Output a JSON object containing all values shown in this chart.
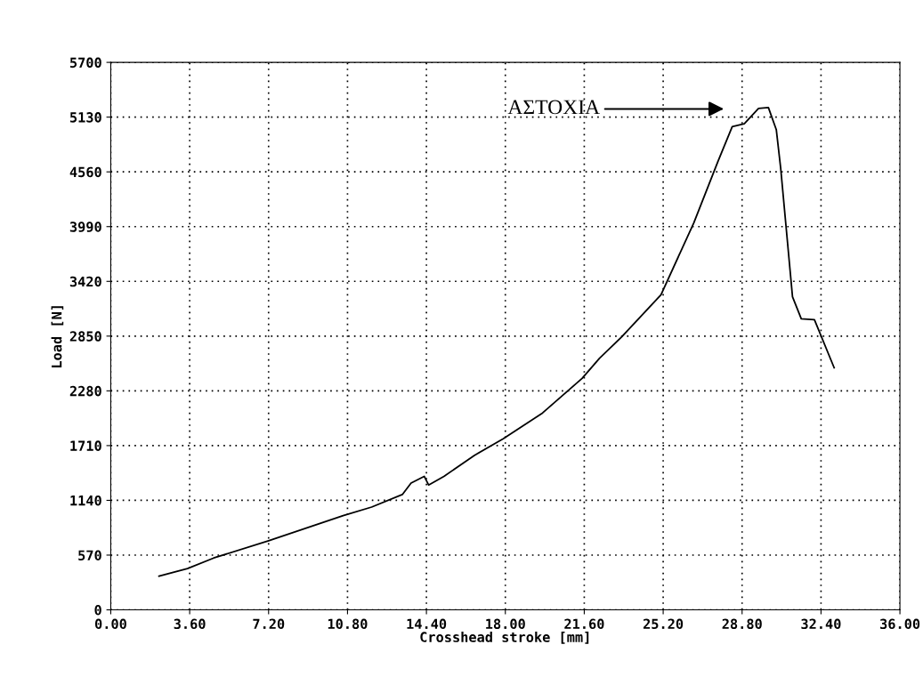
{
  "chart_data": {
    "type": "line",
    "xlabel": "Crosshead stroke [mm]",
    "ylabel": "Load [N]",
    "xlim": [
      0,
      36
    ],
    "ylim": [
      0,
      5700
    ],
    "xticks": [
      {
        "value": 0,
        "label": "0.00"
      },
      {
        "value": 3.6,
        "label": "3.60"
      },
      {
        "value": 7.2,
        "label": "7.20"
      },
      {
        "value": 10.8,
        "label": "10.80"
      },
      {
        "value": 14.4,
        "label": "14.40"
      },
      {
        "value": 18,
        "label": "18.00"
      },
      {
        "value": 21.6,
        "label": "21.60"
      },
      {
        "value": 25.2,
        "label": "25.20"
      },
      {
        "value": 28.8,
        "label": "28.80"
      },
      {
        "value": 32.4,
        "label": "32.40"
      },
      {
        "value": 36,
        "label": "36.00"
      }
    ],
    "yticks": [
      0,
      570,
      1140,
      1710,
      2280,
      2850,
      3420,
      3990,
      4560,
      5130,
      5700
    ],
    "grid": true,
    "annotations": [
      "ΑΣΤΟΧΙΑ"
    ],
    "series": [
      {
        "color": "#000000",
        "x": [
          2.2,
          3.5,
          4.7,
          7.2,
          10.6,
          11.9,
          13.3,
          13.7,
          14.3,
          14.5,
          15.2,
          16.6,
          17.9,
          19.7,
          21.5,
          22.3,
          23.3,
          25.1,
          26.6,
          27.7,
          28.35,
          28.9,
          29.55,
          30.0,
          30.36,
          30.56,
          31.1,
          31.5,
          32.1,
          33.0
        ],
        "values": [
          350,
          430,
          540,
          720,
          980,
          1070,
          1200,
          1320,
          1390,
          1300,
          1390,
          1610,
          1780,
          2050,
          2410,
          2620,
          2840,
          3280,
          4030,
          4670,
          5030,
          5060,
          5220,
          5230,
          5000,
          4600,
          3260,
          3030,
          3020,
          2520
        ]
      }
    ]
  }
}
